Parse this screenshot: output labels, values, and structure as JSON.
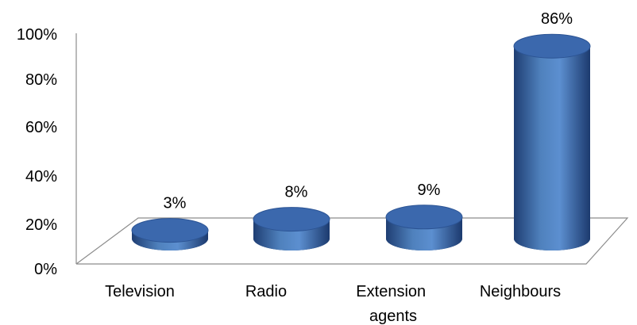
{
  "chart_data": {
    "type": "bar",
    "style": "3d-cylinder",
    "categories": [
      "Television",
      "Radio",
      "Extension agents",
      "Neighbours"
    ],
    "category_lines": [
      [
        "Television"
      ],
      [
        "Radio"
      ],
      [
        "Extension",
        "agents"
      ],
      [
        "Neighbours"
      ]
    ],
    "values": [
      3,
      8,
      9,
      86
    ],
    "data_labels": [
      "3%",
      "8%",
      "9%",
      "86%"
    ],
    "y_ticks": [
      "0%",
      "20%",
      "40%",
      "60%",
      "80%",
      "100%"
    ],
    "ylim": [
      0,
      100
    ],
    "title": "",
    "xlabel": "",
    "ylabel": "",
    "grid": false,
    "legend": "none",
    "colors": {
      "bar_body": "#4f81bd",
      "bar_dark": "#1f3e73",
      "bar_top": "#3b68ad",
      "axis": "#8c8c8c"
    }
  }
}
